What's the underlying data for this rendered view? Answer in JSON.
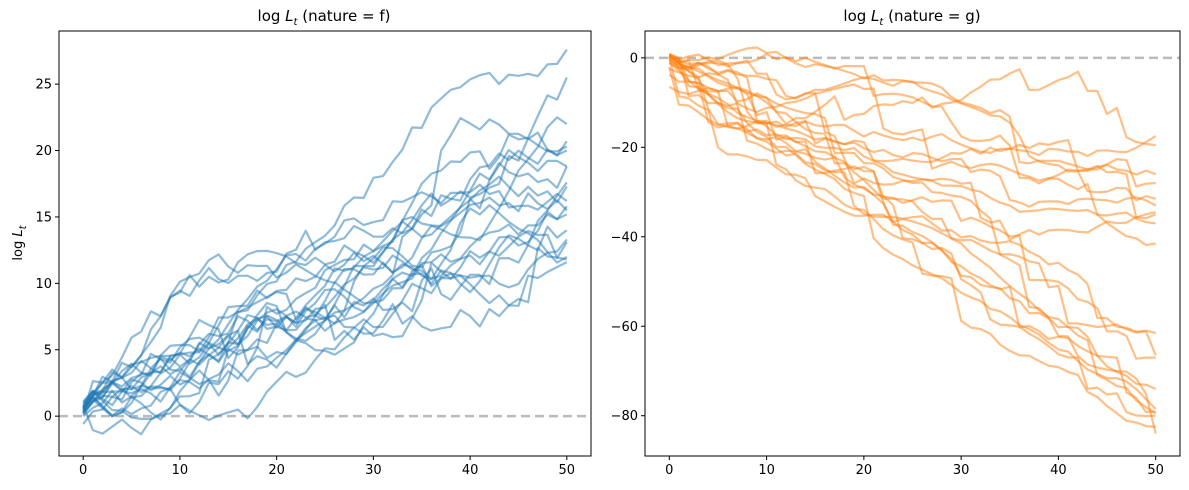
{
  "chart_data": [
    {
      "type": "line",
      "title_math": "log L",
      "title_sub": "t",
      "title_rest": " (nature = f)",
      "ylabel_math": "log L",
      "ylabel_sub": "t",
      "xlim": [
        -2.5,
        52.5
      ],
      "ylim": [
        -3.0,
        29.0
      ],
      "xticks": [
        0,
        10,
        20,
        30,
        40,
        50
      ],
      "yticks": [
        0,
        5,
        10,
        15,
        20,
        25
      ],
      "reference_line": 0,
      "color": "#1f77b4",
      "series_count": 20,
      "endpoints": [
        27.6,
        25.5,
        22.0,
        20.7,
        20.3,
        20.0,
        18.8,
        18.8,
        17.6,
        17.3,
        16.2,
        15.8,
        15.5,
        15.2,
        14.0,
        13.3,
        13.1,
        12.0,
        11.8,
        11.6
      ],
      "starts": [
        1.0,
        0.6,
        0.3,
        0.8,
        0.2,
        0.5,
        1.1,
        0.4,
        0.0,
        0.7,
        -0.6,
        0.9,
        0.3,
        0.6,
        0.1,
        0.8,
        0.5,
        0.2,
        0.4,
        0.7
      ]
    },
    {
      "type": "line",
      "title_math": "log L",
      "title_sub": "t",
      "title_rest": " (nature = g)",
      "xlim": [
        -2.5,
        52.5
      ],
      "ylim": [
        -89.0,
        6.0
      ],
      "xticks": [
        0,
        10,
        20,
        30,
        40,
        50
      ],
      "yticks": [
        0,
        -20,
        -40,
        -60,
        -80
      ],
      "reference_line": 0,
      "color": "#ff7f0e",
      "series_count": 20,
      "endpoints": [
        -17.5,
        -19.5,
        -26.0,
        -28.0,
        -31.5,
        -33.0,
        -34.5,
        -35.0,
        -37.0,
        -41.5,
        -61.5,
        -67.0,
        -74.0,
        -78.5,
        -79.0,
        -80.0,
        -82.5,
        -84.0,
        -66.5,
        -79.5
      ],
      "starts": [
        0.8,
        0.3,
        -0.5,
        0.6,
        0.0,
        -1.2,
        0.4,
        -2.5,
        0.9,
        -3.8,
        0.2,
        -6.5,
        0.5,
        -1.0,
        0.7,
        0.1,
        -0.4,
        0.6,
        -2.0,
        0.3
      ]
    }
  ]
}
